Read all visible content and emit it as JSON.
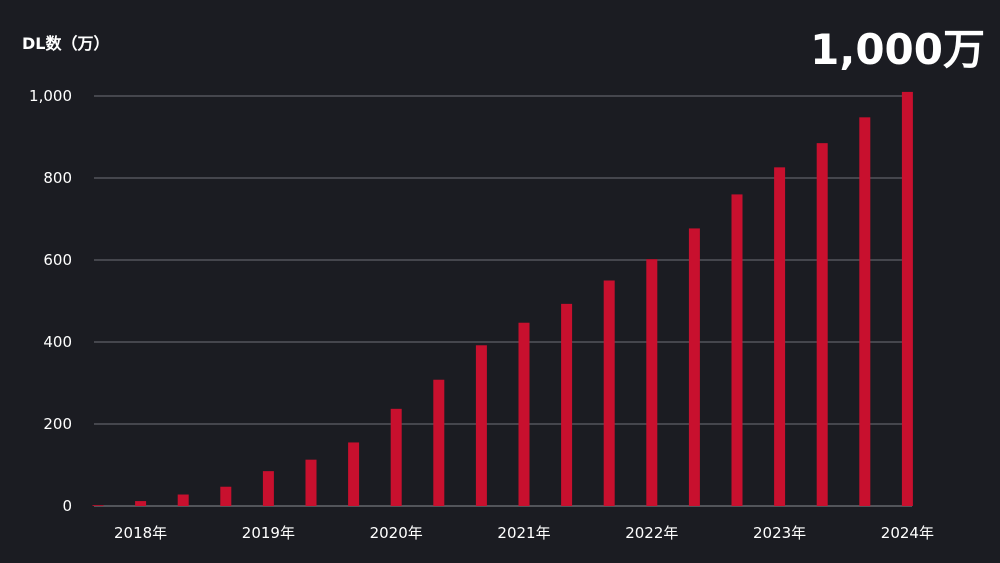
{
  "chart_data": {
    "type": "bar",
    "ylabel": "DL数（万）",
    "headline": "1,000万",
    "ylim": [
      0,
      1000
    ],
    "yticks": [
      0,
      200,
      400,
      600,
      800,
      1000
    ],
    "ytick_labels": [
      "0",
      "200",
      "400",
      "600",
      "800",
      "1,000"
    ],
    "xtick_labels": [
      "2018年",
      "2019年",
      "2020年",
      "2021年",
      "2022年",
      "2023年",
      "2024年"
    ],
    "xtick_positions": [
      1,
      4,
      7,
      10,
      13,
      16,
      19
    ],
    "values": [
      2,
      12,
      28,
      47,
      85,
      113,
      155,
      237,
      308,
      392,
      447,
      493,
      550,
      602,
      677,
      760,
      826,
      885,
      948,
      1010
    ],
    "bar_color": "#c8102e",
    "grid": true
  }
}
